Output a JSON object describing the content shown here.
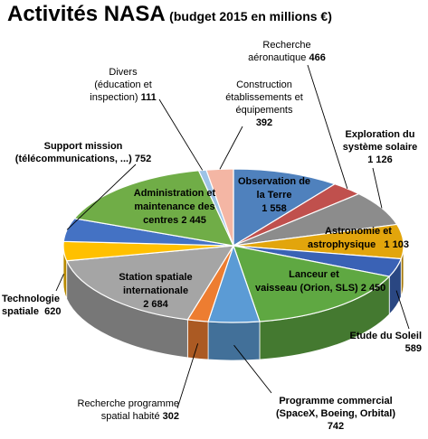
{
  "chart_data": {
    "type": "pie",
    "title": "Activités NASA",
    "subtitle": "(budget 2015 en millions €)",
    "slices": [
      {
        "line1": "Observation de",
        "line2": "la Terre",
        "value_text": "1 558",
        "value": 1558,
        "color": "#4f81bd"
      },
      {
        "line1": "Recherche",
        "line2": "aéronautique",
        "value_text": "466",
        "value": 466,
        "color": "#c0504d"
      },
      {
        "line1": "Exploration du",
        "line2": "système solaire",
        "value_text": "1 126",
        "value": 1126,
        "color": "#8c8c8c"
      },
      {
        "line1": "Astronomie et",
        "line2": "astrophysique",
        "value_text": "1 103",
        "value": 1103,
        "color": "#e2a50c"
      },
      {
        "line1": "Etude du Soleil",
        "line2": "",
        "value_text": "589",
        "value": 589,
        "color": "#3a62b5"
      },
      {
        "line1": "Lanceur et",
        "line2": "vaisseau (Orion, SLS)",
        "value_text": "2 450",
        "value": 2450,
        "color": "#5fa842"
      },
      {
        "line1": "Programme commercial",
        "line2": "(SpaceX, Boeing, Orbital)",
        "value_text": "742",
        "value": 742,
        "color": "#5b9bd5"
      },
      {
        "line1": "Recherche programme",
        "line2": "spatial habité",
        "value_text": "302",
        "value": 302,
        "color": "#ed7d31"
      },
      {
        "line1": "Station spatiale",
        "line2": "internationale",
        "value_text": "2 684",
        "value": 2684,
        "color": "#a5a5a5"
      },
      {
        "line1": "Technologie",
        "line2": "spatiale",
        "value_text": "620",
        "value": 620,
        "color": "#ffc000"
      },
      {
        "line1": "Support mission",
        "line2": "(télécommunications, ...)",
        "value_text": "752",
        "value": 752,
        "color": "#4472c4"
      },
      {
        "line1": "Administration et",
        "line2": "maintenance des centres",
        "value_text": "2 445",
        "value": 2445,
        "color": "#70ad47"
      },
      {
        "line1": "Divers",
        "line2": "(éducation et inspection)",
        "value_text": "111",
        "value": 111,
        "color": "#9dc3e6"
      },
      {
        "line1": "Construction",
        "line2": "établissements et équipements",
        "value_text": "392",
        "value": 392,
        "color": "#f4b6a4"
      }
    ]
  }
}
